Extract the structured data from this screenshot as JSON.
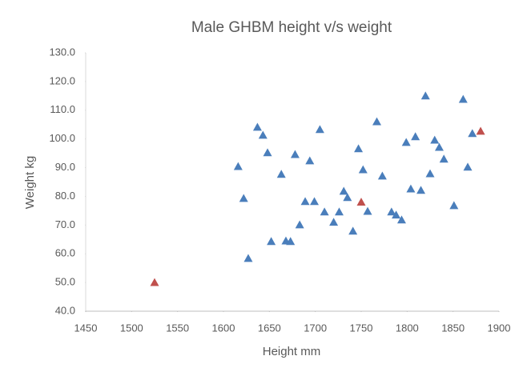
{
  "chart_data": {
    "type": "scatter",
    "title": "Male GHBM height v/s weight",
    "x_label": "Height mm",
    "y_label": "Weight kg",
    "xlim": [
      1450,
      1900
    ],
    "xticks": [
      1450,
      1500,
      1550,
      1600,
      1650,
      1700,
      1750,
      1800,
      1850,
      1900
    ],
    "ylim": [
      40,
      130
    ],
    "yticks": [
      {
        "value": 40,
        "label": "40.0"
      },
      {
        "value": 50,
        "label": "50.0"
      },
      {
        "value": 60,
        "label": "60.0"
      },
      {
        "value": 70,
        "label": "70.0"
      },
      {
        "value": 80,
        "label": "80.0"
      },
      {
        "value": 90,
        "label": "90.0"
      },
      {
        "value": 100,
        "label": "100.0"
      },
      {
        "value": 110,
        "label": "110.0"
      },
      {
        "value": 120,
        "label": "120.0"
      },
      {
        "value": 130,
        "label": "130.0"
      }
    ],
    "grid": false,
    "marker": "triangle",
    "series": [
      {
        "color": "#4a7ebb",
        "x": [
          1616,
          1622,
          1627,
          1637,
          1643,
          1648,
          1652,
          1663,
          1668,
          1673,
          1678,
          1683,
          1689,
          1694,
          1699,
          1705,
          1710,
          1720,
          1726,
          1731,
          1735,
          1741,
          1747,
          1752,
          1757,
          1767,
          1773,
          1783,
          1788,
          1794,
          1799,
          1804,
          1809,
          1815,
          1820,
          1825,
          1830,
          1835,
          1840,
          1851,
          1861,
          1866,
          1871
        ],
        "values": [
          90.4,
          79.3,
          58.4,
          104.1,
          101.3,
          95.2,
          64.3,
          87.7,
          64.5,
          64.3,
          94.6,
          70.1,
          78.2,
          92.4,
          78.2,
          103.3,
          74.6,
          71.0,
          74.6,
          81.8,
          79.6,
          67.9,
          96.6,
          89.3,
          74.8,
          106,
          87.1,
          74.6,
          73.5,
          71.8,
          98.8,
          82.6,
          100.8,
          82.1,
          115,
          87.9,
          99.6,
          97.1,
          93,
          76.8,
          113.8,
          90.2,
          101.9
        ]
      },
      {
        "color": "#c0504d",
        "x": [
          1525,
          1750,
          1880
        ],
        "values": [
          50,
          78,
          102.7
        ]
      }
    ]
  }
}
